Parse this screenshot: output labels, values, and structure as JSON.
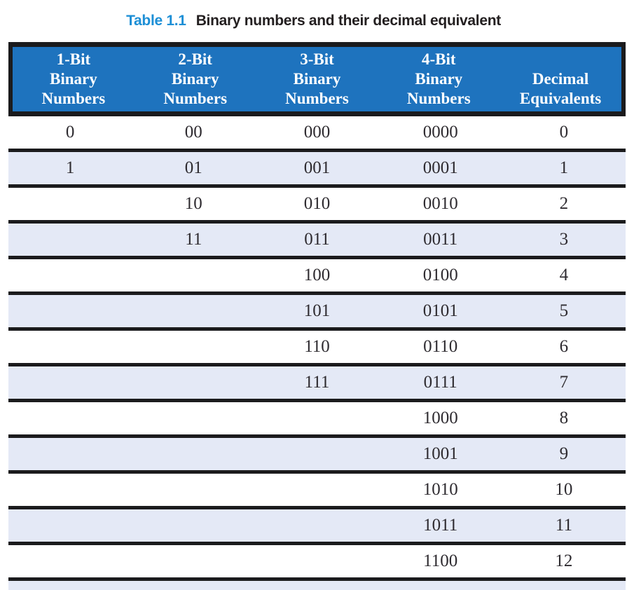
{
  "page": {
    "title": {
      "label": "Table 1.1",
      "text": "Binary numbers and their decimal equivalent"
    }
  },
  "table": {
    "columns": [
      {
        "id": "1-bit-binary",
        "lines": [
          "1-Bit",
          "Binary",
          "Numbers"
        ]
      },
      {
        "id": "2-bit-binary",
        "lines": [
          "2-Bit",
          "Binary",
          "Numbers"
        ]
      },
      {
        "id": "3-bit-binary",
        "lines": [
          "3-Bit",
          "Binary",
          "Numbers"
        ]
      },
      {
        "id": "4-bit-binary",
        "lines": [
          "4-Bit",
          "Binary",
          "Numbers"
        ]
      },
      {
        "id": "decimal",
        "lines": [
          "Decimal",
          "Equivalents"
        ]
      }
    ],
    "rows": [
      [
        "0",
        "00",
        "000",
        "0000",
        "0"
      ],
      [
        "1",
        "01",
        "001",
        "0001",
        "1"
      ],
      [
        "",
        "10",
        "010",
        "0010",
        "2"
      ],
      [
        "",
        "11",
        "011",
        "0011",
        "3"
      ],
      [
        "",
        "",
        "100",
        "0100",
        "4"
      ],
      [
        "",
        "",
        "101",
        "0101",
        "5"
      ],
      [
        "",
        "",
        "110",
        "0110",
        "6"
      ],
      [
        "",
        "",
        "111",
        "0111",
        "7"
      ],
      [
        "",
        "",
        "",
        "1000",
        "8"
      ],
      [
        "",
        "",
        "",
        "1001",
        "9"
      ],
      [
        "",
        "",
        "",
        "1010",
        "10"
      ],
      [
        "",
        "",
        "",
        "1011",
        "11"
      ],
      [
        "",
        "",
        "",
        "1100",
        "12"
      ]
    ],
    "partial_bottom_row_visible": true,
    "colors": {
      "header_bg": "#1E73BE",
      "header_text": "#FFFFFF",
      "stripe_bg": "#E4E9F6",
      "rule": "#1B1B1D",
      "body_text": "#2E2B30",
      "caption_accent": "#1D8FD6",
      "caption_text": "#231F20"
    }
  }
}
